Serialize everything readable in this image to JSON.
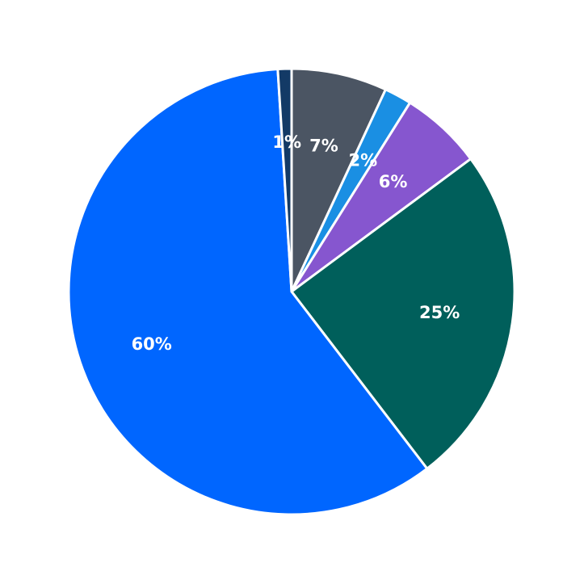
{
  "chart_data": {
    "type": "pie",
    "title": "",
    "start_angle_deg": 90,
    "direction": "clockwise",
    "slice_border_color": "#ffffff",
    "slices": [
      {
        "value": 7,
        "label": "7%",
        "color": "#4b5563"
      },
      {
        "value": 2,
        "label": "2%",
        "color": "#1a8fe3"
      },
      {
        "value": 6,
        "label": "6%",
        "color": "#8656cf"
      },
      {
        "value": 25,
        "label": "25%",
        "color": "#005f5b"
      },
      {
        "value": 60,
        "label": "60%",
        "color": "#0066ff"
      },
      {
        "value": 1,
        "label": "1%",
        "color": "#133a66"
      }
    ]
  }
}
